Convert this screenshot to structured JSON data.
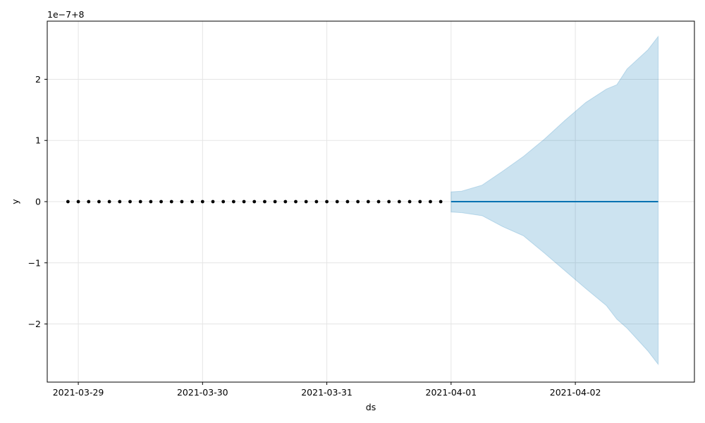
{
  "chart_data": {
    "type": "line",
    "xlabel": "ds",
    "ylabel": "y",
    "y_offset_text": "1e−7+8",
    "x_axis_type": "datetime",
    "xlim": [
      "2021-03-28T18:00",
      "2021-04-02T23:00"
    ],
    "ylim": [
      -2.95,
      2.95
    ],
    "y_unit_note": "values in units of 1e-7 relative to 8",
    "grid": true,
    "legend": "none",
    "x_ticks": [
      {
        "value": "2021-03-29",
        "label": "2021-03-29"
      },
      {
        "value": "2021-03-30",
        "label": "2021-03-30"
      },
      {
        "value": "2021-03-31",
        "label": "2021-03-31"
      },
      {
        "value": "2021-04-01",
        "label": "2021-04-01"
      },
      {
        "value": "2021-04-02",
        "label": "2021-04-02"
      }
    ],
    "y_ticks": [
      {
        "value": -2,
        "label": "−2"
      },
      {
        "value": -1,
        "label": "−1"
      },
      {
        "value": 0,
        "label": "0"
      },
      {
        "value": 1,
        "label": "1"
      },
      {
        "value": 2,
        "label": "2"
      }
    ],
    "observed": {
      "color": "#000000",
      "start": "2021-03-28T22:00",
      "end": "2021-03-31T23:00",
      "step_hours": 2,
      "value": 0
    },
    "forecast": {
      "color": "#0072B2",
      "x": [
        "2021-04-01T00:00",
        "2021-04-02T16:00"
      ],
      "values": [
        0,
        0
      ]
    },
    "uncertainty": {
      "color": "#0072B2",
      "opacity": 0.2,
      "x": [
        "2021-04-01T00:00",
        "2021-04-01T02:00",
        "2021-04-01T06:00",
        "2021-04-01T10:00",
        "2021-04-01T14:00",
        "2021-04-01T18:00",
        "2021-04-01T22:00",
        "2021-04-02T02:00",
        "2021-04-02T06:00",
        "2021-04-02T08:00",
        "2021-04-02T10:00",
        "2021-04-02T14:00",
        "2021-04-02T16:00"
      ],
      "upper": [
        0.16,
        0.17,
        0.27,
        0.5,
        0.74,
        1.02,
        1.33,
        1.62,
        1.84,
        1.91,
        2.17,
        2.48,
        2.7
      ],
      "lower": [
        -0.17,
        -0.18,
        -0.23,
        -0.41,
        -0.56,
        -0.84,
        -1.13,
        -1.42,
        -1.7,
        -1.92,
        -2.07,
        -2.44,
        -2.66
      ]
    }
  }
}
